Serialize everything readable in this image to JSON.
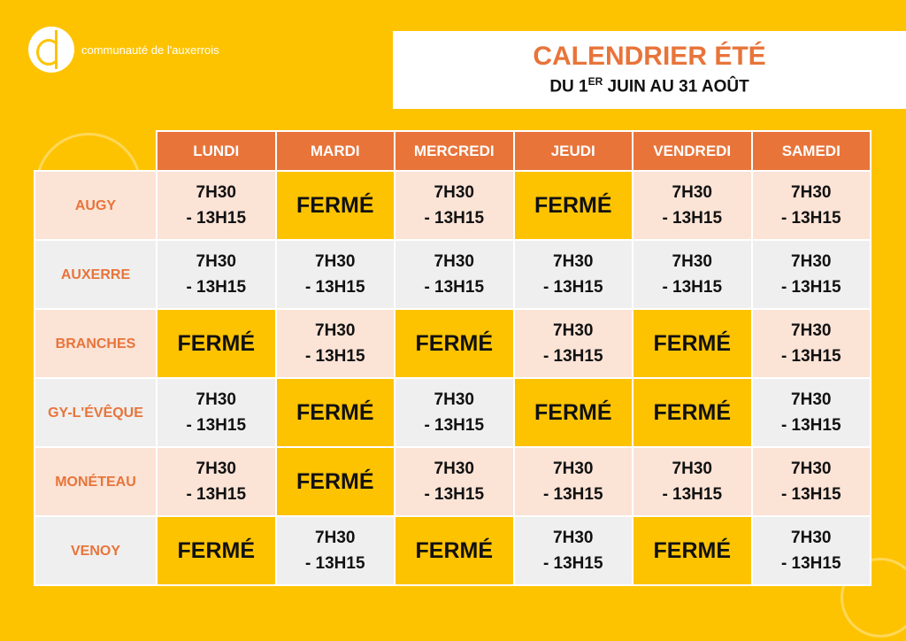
{
  "logo": {
    "text": "communauté de l'auxerrois"
  },
  "header": {
    "title": "CALENDRIER ÉTÉ",
    "subtitle_pre": "DU 1",
    "subtitle_sup": "ER",
    "subtitle_post": " JUIN AU 31 AOÛT"
  },
  "colors": {
    "background": "#fec300",
    "header": "#e8743a",
    "row_a": "#fbe3d6",
    "row_b": "#efefef"
  },
  "days": [
    "LUNDI",
    "MARDI",
    "MERCREDI",
    "JEUDI",
    "VENDREDI",
    "SAMEDI"
  ],
  "rows": [
    {
      "name": "AUGY",
      "cells": [
        "7H30\n- 13H15",
        "FERMÉ",
        "7H30\n- 13H15",
        "FERMÉ",
        "7H30\n- 13H15",
        "7H30\n- 13H15"
      ]
    },
    {
      "name": "AUXERRE",
      "cells": [
        "7H30\n- 13H15",
        "7H30\n- 13H15",
        "7H30\n- 13H15",
        "7H30\n- 13H15",
        "7H30\n- 13H15",
        "7H30\n- 13H15"
      ]
    },
    {
      "name": "BRANCHES",
      "cells": [
        "FERMÉ",
        "7H30\n- 13H15",
        "FERMÉ",
        "7H30\n- 13H15",
        "FERMÉ",
        "7H30\n- 13H15"
      ]
    },
    {
      "name": "GY-L'ÉVÊQUE",
      "cells": [
        "7H30\n- 13H15",
        "FERMÉ",
        "7H30\n- 13H15",
        "FERMÉ",
        "FERMÉ",
        "7H30\n- 13H15"
      ]
    },
    {
      "name": "MONÉTEAU",
      "cells": [
        "7H30\n- 13H15",
        "FERMÉ",
        "7H30\n- 13H15",
        "7H30\n- 13H15",
        "7H30\n- 13H15",
        "7H30\n- 13H15"
      ]
    },
    {
      "name": "VENOY",
      "cells": [
        "FERMÉ",
        "7H30\n- 13H15",
        "FERMÉ",
        "7H30\n- 13H15",
        "FERMÉ",
        "7H30\n- 13H15"
      ]
    }
  ]
}
